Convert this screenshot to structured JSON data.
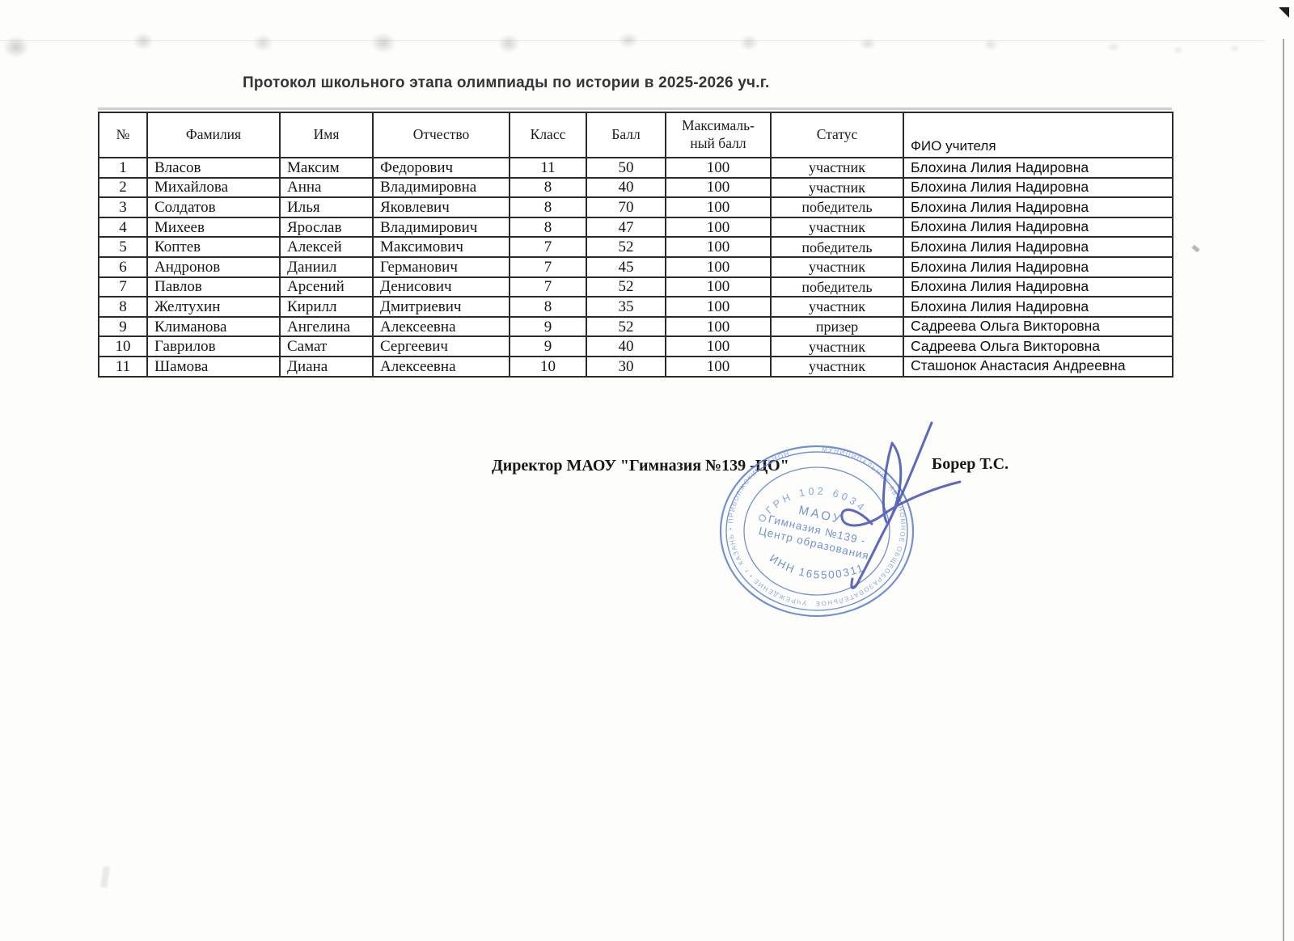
{
  "page": {
    "title": "Протокол школьного этапа олимпиады по истории в 2025-2026 уч.г."
  },
  "table": {
    "columns": [
      "№",
      "Фамилия",
      "Имя",
      "Отчество",
      "Класс",
      "Балл",
      "Максималь-\nный балл",
      "Статус",
      "ФИО учителя"
    ],
    "rows": [
      [
        "1",
        "Власов",
        "Максим",
        "Федорович",
        "11",
        "50",
        "100",
        "участник",
        "Блохина Лилия Надировна"
      ],
      [
        "2",
        "Михайлова",
        "Анна",
        "Владимировна",
        "8",
        "40",
        "100",
        "участник",
        "Блохина Лилия Надировна"
      ],
      [
        "3",
        "Солдатов",
        "Илья",
        "Яковлевич",
        "8",
        "70",
        "100",
        "победитель",
        "Блохина Лилия Надировна"
      ],
      [
        "4",
        "Михеев",
        "Ярослав",
        "Владимирович",
        "8",
        "47",
        "100",
        "участник",
        "Блохина Лилия Надировна"
      ],
      [
        "5",
        "Коптев",
        "Алексей",
        "Максимович",
        "7",
        "52",
        "100",
        "победитель",
        "Блохина Лилия Надировна"
      ],
      [
        "6",
        "Андронов",
        "Даниил",
        "Германович",
        "7",
        "45",
        "100",
        "участник",
        "Блохина Лилия Надировна"
      ],
      [
        "7",
        "Павлов",
        "Арсений",
        "Денисович",
        "7",
        "52",
        "100",
        "победитель",
        "Блохина Лилия Надировна"
      ],
      [
        "8",
        "Желтухин",
        "Кирилл",
        "Дмитриевич",
        "8",
        "35",
        "100",
        "участник",
        "Блохина Лилия Надировна"
      ],
      [
        "9",
        "Климанова",
        "Ангелина",
        "Алексеевна",
        "9",
        "52",
        "100",
        "призер",
        "Садреева Ольга Викторовна"
      ],
      [
        "10",
        "Гаврилов",
        "Самат",
        "Сергеевич",
        "9",
        "40",
        "100",
        "участник",
        "Садреева Ольга Викторовна"
      ],
      [
        "11",
        "Шамова",
        "Диана",
        "Алексеевна",
        "10",
        "30",
        "100",
        "участник",
        "Сташонок Анастасия Андреевна"
      ]
    ]
  },
  "footer": {
    "director_label": "Директор МАОУ \"Гимназия №139 -ЦО\"",
    "director_name": "Борер Т.С."
  },
  "stamp": {
    "ring_top": "МУНИЦИПАЛЬНОЕ АВТОНОМНОЕ ОБЩЕОБРАЗОВАТЕЛЬНОЕ",
    "ring_bottom": "УЧРЕЖДЕНИЕ  •  г. КАЗАНЬ  •  ПРИВОЛЖСКИЙ РАЙОН",
    "ogrn": "ОГРН 102 6034",
    "org_short": "МАОУ",
    "org_line2": "Гимназия №139 -",
    "org_line3": "Центр образования",
    "inn": "ИНН 1655003118",
    "color": "#5b7fc9"
  },
  "signature": {
    "color": "#4d58b6"
  }
}
